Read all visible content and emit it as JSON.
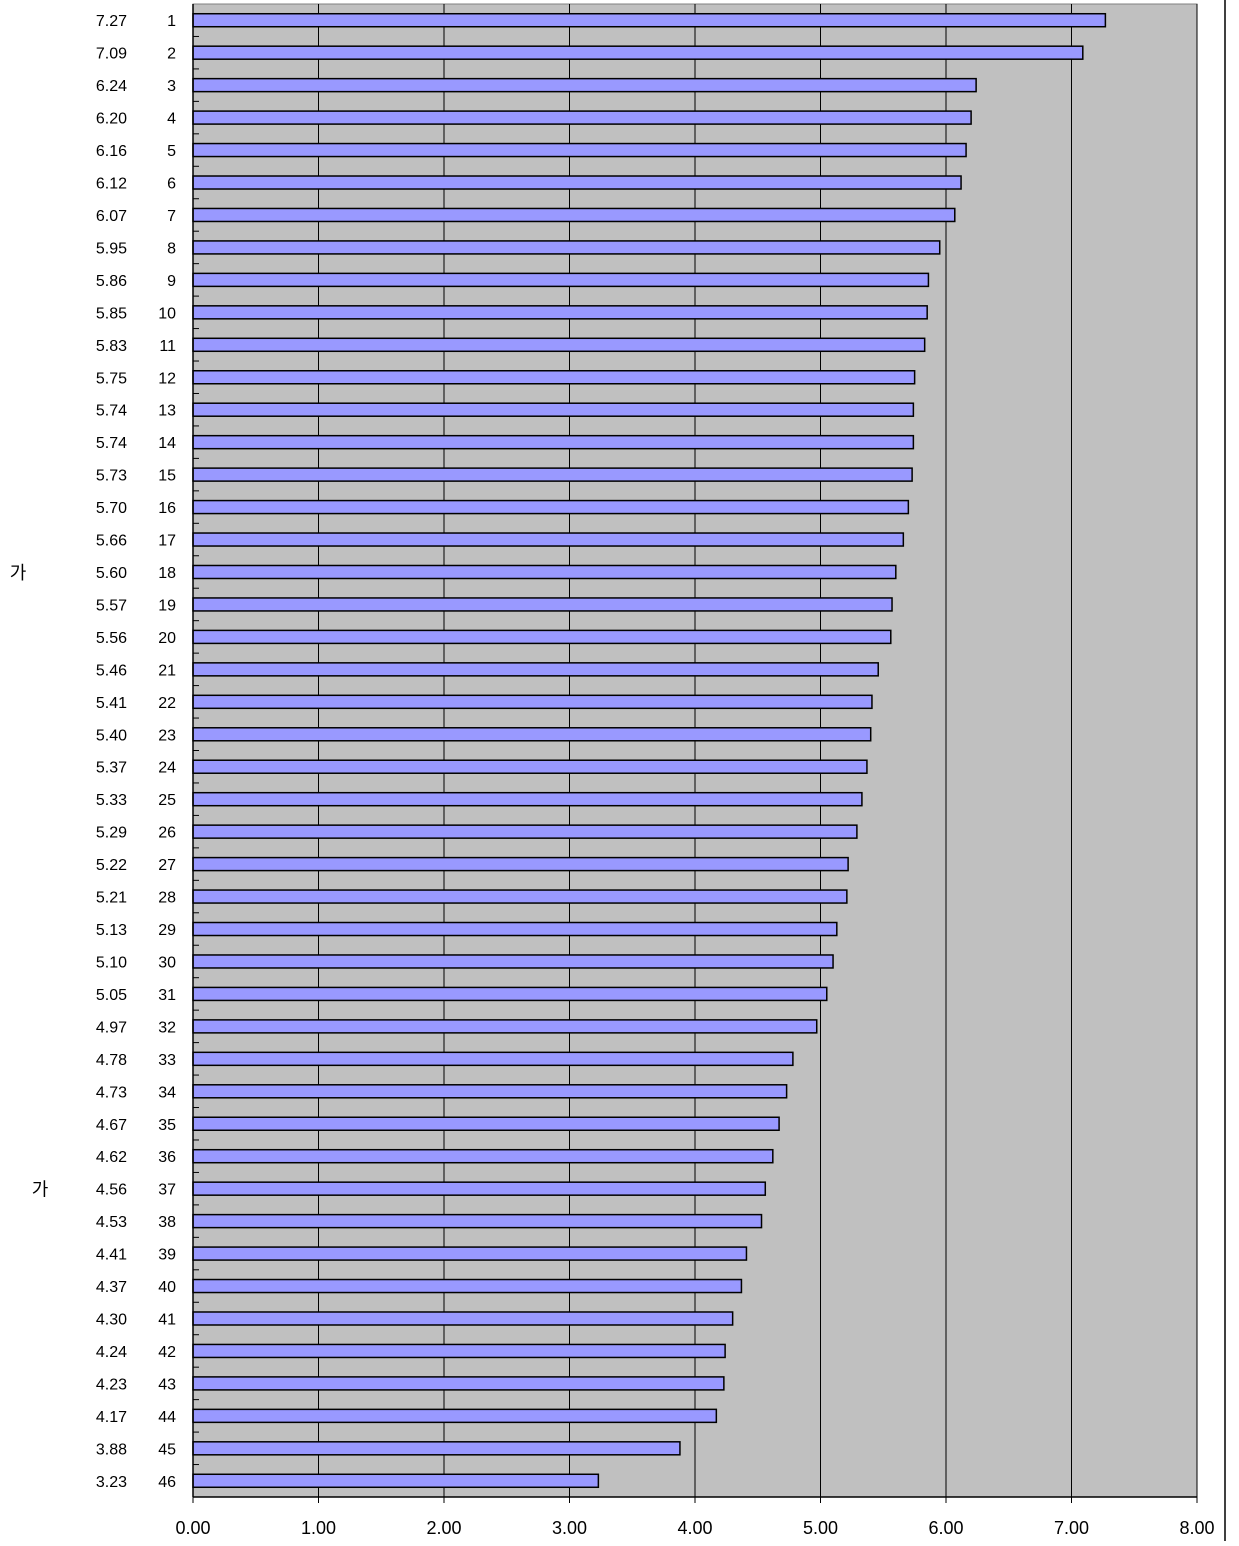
{
  "chart_data": {
    "type": "bar",
    "orientation": "horizontal",
    "categories": [
      "1",
      "2",
      "3",
      "4",
      "5",
      "6",
      "7",
      "8",
      "9",
      "10",
      "11",
      "12",
      "13",
      "14",
      "15",
      "16",
      "17",
      "18",
      "19",
      "20",
      "21",
      "22",
      "23",
      "24",
      "25",
      "26",
      "27",
      "28",
      "29",
      "30",
      "31",
      "32",
      "33",
      "34",
      "35",
      "36",
      "37",
      "38",
      "39",
      "40",
      "41",
      "42",
      "43",
      "44",
      "45",
      "46"
    ],
    "values": [
      7.27,
      7.09,
      6.24,
      6.2,
      6.16,
      6.12,
      6.07,
      5.95,
      5.86,
      5.85,
      5.83,
      5.75,
      5.74,
      5.74,
      5.73,
      5.7,
      5.66,
      5.6,
      5.57,
      5.56,
      5.46,
      5.41,
      5.4,
      5.37,
      5.33,
      5.29,
      5.22,
      5.21,
      5.13,
      5.1,
      5.05,
      4.97,
      4.78,
      4.73,
      4.67,
      4.62,
      4.56,
      4.53,
      4.41,
      4.37,
      4.3,
      4.24,
      4.23,
      4.17,
      3.88,
      3.23
    ],
    "value_labels": [
      "7.27",
      "7.09",
      "6.24",
      "6.20",
      "6.16",
      "6.12",
      "6.07",
      "5.95",
      "5.86",
      "5.85",
      "5.83",
      "5.75",
      "5.74",
      "5.74",
      "5.73",
      "5.70",
      "5.66",
      "5.60",
      "5.57",
      "5.56",
      "5.46",
      "5.41",
      "5.40",
      "5.37",
      "5.33",
      "5.29",
      "5.22",
      "5.21",
      "5.13",
      "5.10",
      "5.05",
      "4.97",
      "4.78",
      "4.73",
      "4.67",
      "4.62",
      "4.56",
      "4.53",
      "4.41",
      "4.37",
      "4.30",
      "4.24",
      "4.23",
      "4.17",
      "3.88",
      "3.23"
    ],
    "xlim": [
      0,
      8
    ],
    "xticks": [
      "0.00",
      "1.00",
      "2.00",
      "3.00",
      "4.00",
      "5.00",
      "6.00",
      "7.00",
      "8.00"
    ],
    "grid": "vertical",
    "side_markers": [
      {
        "text": "가",
        "row": 18
      },
      {
        "text": "가",
        "row": 37
      }
    ],
    "colors": {
      "bar_fill": "#9999FF",
      "bar_stroke": "#000000",
      "plot_background": "#C0C0C0",
      "gridline": "#000000"
    }
  }
}
